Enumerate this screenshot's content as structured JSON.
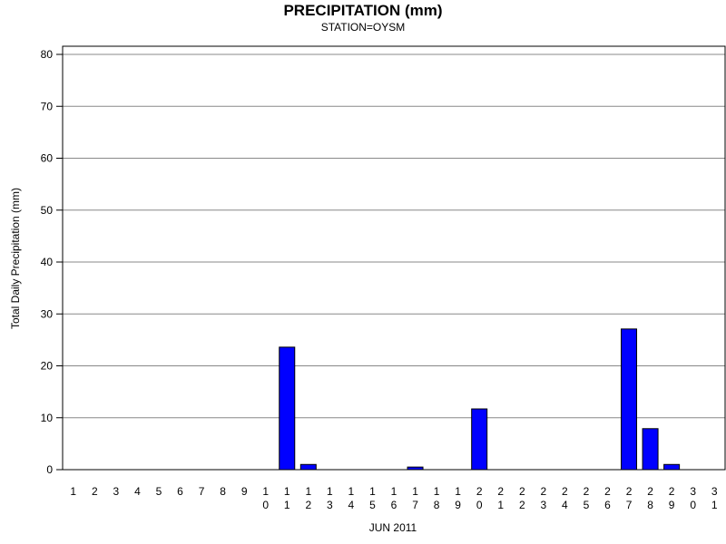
{
  "chart_data": {
    "type": "bar",
    "title": "PRECIPITATION (mm)",
    "subtitle": "STATION=OYSM",
    "x_label": "JUN 2011",
    "y_label": "Total Daily Precipitation (mm)",
    "categories": [
      "1",
      "2",
      "3",
      "4",
      "5",
      "6",
      "7",
      "8",
      "9",
      "10",
      "11",
      "12",
      "13",
      "14",
      "15",
      "16",
      "17",
      "18",
      "19",
      "20",
      "21",
      "22",
      "23",
      "24",
      "25",
      "26",
      "27",
      "28",
      "29",
      "30",
      "31"
    ],
    "values": [
      0,
      0,
      0,
      0,
      0,
      0,
      0,
      0,
      0,
      0,
      23.6,
      1.0,
      0,
      0,
      0,
      0,
      0.5,
      0,
      0,
      11.7,
      0,
      0,
      0,
      0,
      0,
      0,
      27.1,
      7.9,
      1.0,
      0,
      0
    ],
    "color": "#0000ff",
    "ylim": [
      0,
      80
    ],
    "yticks": [
      0,
      10,
      20,
      30,
      40,
      50,
      60,
      70,
      80
    ],
    "grid": true
  }
}
